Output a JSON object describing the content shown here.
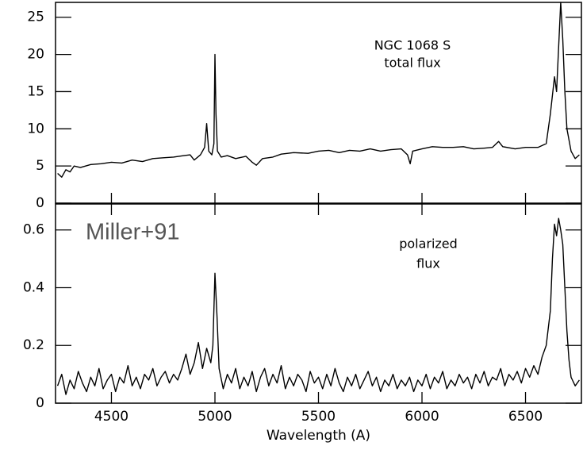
{
  "overlay": "Miller+91",
  "chart_data": [
    {
      "type": "line",
      "annotations": [
        "NGC 1068 S",
        "total flux"
      ],
      "x": [
        4240,
        4260,
        4280,
        4300,
        4320,
        4350,
        4400,
        4450,
        4500,
        4550,
        4600,
        4650,
        4700,
        4750,
        4800,
        4850,
        4880,
        4900,
        4930,
        4950,
        4960,
        4970,
        4985,
        4995,
        5000,
        5005,
        5012,
        5030,
        5060,
        5100,
        5150,
        5180,
        5200,
        5230,
        5280,
        5320,
        5380,
        5450,
        5500,
        5550,
        5600,
        5650,
        5700,
        5750,
        5800,
        5850,
        5900,
        5930,
        5943,
        5955,
        6000,
        6050,
        6100,
        6150,
        6200,
        6250,
        6300,
        6340,
        6370,
        6390,
        6450,
        6500,
        6560,
        6600,
        6620,
        6640,
        6650,
        6660,
        6670,
        6680,
        6690,
        6700,
        6720,
        6740,
        6760
      ],
      "series": [
        {
          "color": "#000000",
          "values": [
            4,
            3.5,
            4.5,
            4.2,
            5,
            4.8,
            5.2,
            5.3,
            5.5,
            5.4,
            5.8,
            5.6,
            6,
            6.1,
            6.2,
            6.4,
            6.5,
            5.8,
            6.5,
            7.5,
            10.7,
            7,
            6.5,
            8,
            20,
            12,
            7,
            6.2,
            6.4,
            6,
            6.3,
            5.5,
            5.1,
            6,
            6.2,
            6.6,
            6.8,
            6.7,
            7,
            7.1,
            6.8,
            7.1,
            7,
            7.3,
            7,
            7.2,
            7.3,
            6.5,
            5.3,
            7,
            7.3,
            7.6,
            7.5,
            7.5,
            7.6,
            7.3,
            7.4,
            7.5,
            8.3,
            7.6,
            7.3,
            7.5,
            7.5,
            8,
            12,
            17,
            15,
            21,
            27,
            22,
            15,
            10,
            7,
            6,
            6.5
          ]
        }
      ],
      "xlim": [
        4230,
        6770
      ],
      "ylim": [
        0,
        27
      ],
      "yticks": [
        0,
        5,
        10,
        15,
        20,
        25
      ]
    },
    {
      "type": "line",
      "annotations": [
        "polarized",
        "flux"
      ],
      "x_label": "Wavelength (A)",
      "x": [
        4240,
        4260,
        4280,
        4300,
        4320,
        4340,
        4360,
        4380,
        4400,
        4420,
        4440,
        4460,
        4480,
        4500,
        4520,
        4540,
        4560,
        4580,
        4600,
        4620,
        4640,
        4660,
        4680,
        4700,
        4720,
        4740,
        4760,
        4780,
        4800,
        4820,
        4840,
        4860,
        4880,
        4900,
        4920,
        4940,
        4960,
        4980,
        4990,
        5000,
        5010,
        5020,
        5040,
        5060,
        5080,
        5100,
        5120,
        5140,
        5160,
        5180,
        5200,
        5220,
        5240,
        5260,
        5280,
        5300,
        5320,
        5340,
        5360,
        5380,
        5400,
        5420,
        5440,
        5460,
        5480,
        5500,
        5520,
        5540,
        5560,
        5580,
        5600,
        5620,
        5640,
        5660,
        5680,
        5700,
        5720,
        5740,
        5760,
        5780,
        5800,
        5820,
        5840,
        5860,
        5880,
        5900,
        5920,
        5940,
        5960,
        5980,
        6000,
        6020,
        6040,
        6060,
        6080,
        6100,
        6120,
        6140,
        6160,
        6180,
        6200,
        6220,
        6240,
        6260,
        6280,
        6300,
        6320,
        6340,
        6360,
        6380,
        6400,
        6420,
        6440,
        6460,
        6480,
        6500,
        6520,
        6540,
        6560,
        6580,
        6600,
        6620,
        6630,
        6640,
        6650,
        6660,
        6670,
        6680,
        6690,
        6700,
        6710,
        6720,
        6740,
        6760
      ],
      "series": [
        {
          "color": "#000000",
          "values": [
            0.06,
            0.1,
            0.03,
            0.08,
            0.05,
            0.11,
            0.07,
            0.04,
            0.09,
            0.06,
            0.12,
            0.05,
            0.08,
            0.1,
            0.04,
            0.09,
            0.07,
            0.13,
            0.06,
            0.09,
            0.05,
            0.1,
            0.08,
            0.12,
            0.06,
            0.09,
            0.11,
            0.07,
            0.1,
            0.08,
            0.12,
            0.17,
            0.1,
            0.14,
            0.21,
            0.12,
            0.19,
            0.14,
            0.2,
            0.45,
            0.3,
            0.12,
            0.05,
            0.1,
            0.07,
            0.12,
            0.05,
            0.09,
            0.06,
            0.11,
            0.04,
            0.09,
            0.12,
            0.06,
            0.1,
            0.07,
            0.13,
            0.05,
            0.09,
            0.06,
            0.1,
            0.08,
            0.04,
            0.11,
            0.07,
            0.09,
            0.05,
            0.1,
            0.06,
            0.12,
            0.07,
            0.04,
            0.09,
            0.06,
            0.1,
            0.05,
            0.08,
            0.11,
            0.06,
            0.09,
            0.04,
            0.08,
            0.06,
            0.1,
            0.05,
            0.08,
            0.06,
            0.09,
            0.04,
            0.08,
            0.06,
            0.1,
            0.05,
            0.09,
            0.07,
            0.11,
            0.05,
            0.08,
            0.06,
            0.1,
            0.07,
            0.09,
            0.05,
            0.1,
            0.07,
            0.11,
            0.06,
            0.09,
            0.08,
            0.12,
            0.06,
            0.1,
            0.08,
            0.11,
            0.07,
            0.12,
            0.09,
            0.13,
            0.1,
            0.16,
            0.2,
            0.32,
            0.5,
            0.62,
            0.58,
            0.64,
            0.6,
            0.55,
            0.4,
            0.25,
            0.15,
            0.09,
            0.06,
            0.08
          ]
        }
      ],
      "xlim": [
        4230,
        6770
      ],
      "ylim": [
        0,
        0.69
      ],
      "yticks": [
        0,
        0.2,
        0.4,
        0.6
      ],
      "xticks": [
        4500,
        5000,
        5500,
        6000,
        6500
      ]
    }
  ]
}
